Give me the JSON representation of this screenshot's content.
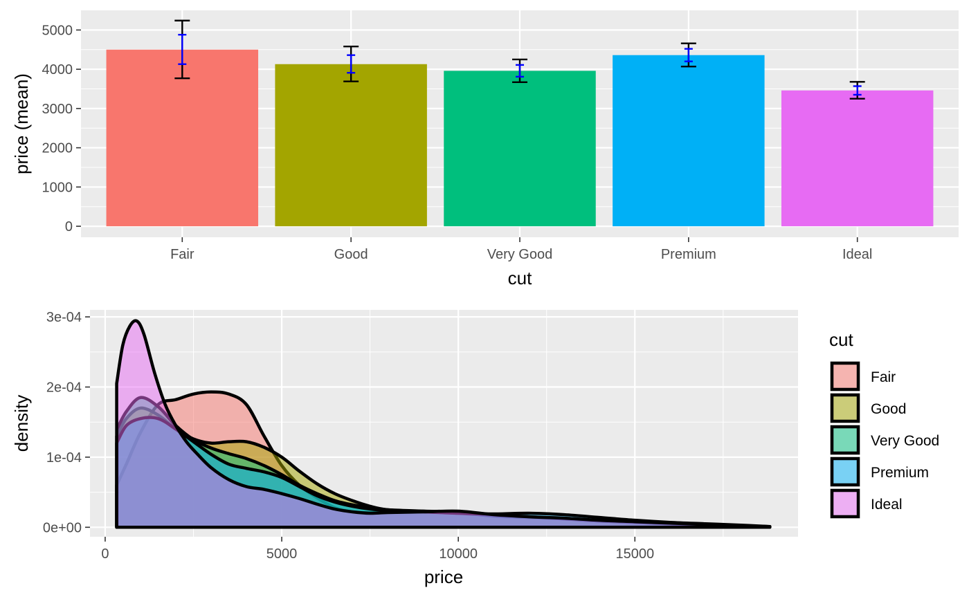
{
  "chart_data": [
    {
      "type": "bar",
      "xlabel": "cut",
      "ylabel": "price (mean)",
      "categories": [
        "Fair",
        "Good",
        "Very Good",
        "Premium",
        "Ideal"
      ],
      "values": [
        4500,
        4130,
        3960,
        4360,
        3460
      ],
      "error_outer": [
        [
          3770,
          5240
        ],
        [
          3690,
          4580
        ],
        [
          3670,
          4250
        ],
        [
          4070,
          4660
        ],
        [
          3250,
          3680
        ]
      ],
      "error_inner": [
        [
          4130,
          4880
        ],
        [
          3910,
          4360
        ],
        [
          3810,
          4110
        ],
        [
          4200,
          4520
        ],
        [
          3350,
          3570
        ]
      ],
      "ylim": [
        -280,
        5500
      ],
      "yticks": [
        0,
        1000,
        2000,
        3000,
        4000,
        5000
      ],
      "ytick_labels": [
        "0",
        "1000",
        "2000",
        "3000",
        "4000",
        "5000"
      ],
      "colors": [
        "#F8766D",
        "#A3A500",
        "#00BF7D",
        "#00B0F6",
        "#E76BF3"
      ],
      "grid": true,
      "legend": "none"
    },
    {
      "type": "area",
      "xlabel": "price",
      "ylabel": "density",
      "xlim": [
        -430,
        19620
      ],
      "ylim": [
        -1.35e-05,
        0.00031
      ],
      "xticks": [
        0,
        5000,
        10000,
        15000
      ],
      "xtick_labels": [
        "0",
        "5000",
        "10000",
        "15000"
      ],
      "yticks": [
        0,
        0.0001,
        0.0002,
        0.0003
      ],
      "ytick_labels": [
        "0e+00",
        "1e-04",
        "2e-04",
        "3e-04"
      ],
      "grid": true,
      "legend": "right",
      "legend_title": "cut",
      "series": [
        {
          "name": "Fair",
          "color": "#F8766D",
          "x": [
            326,
            600,
            1000,
            1500,
            2000,
            2500,
            3000,
            3500,
            4000,
            4500,
            5000,
            5500,
            6000,
            6500,
            7000,
            7500,
            8000,
            9000,
            10000,
            11000,
            12000,
            13000,
            14000,
            15000,
            16000,
            17000,
            18000,
            18574
          ],
          "y": [
            6e-05,
            9e-05,
            0.000135,
            0.000175,
            0.000182,
            0.00019,
            0.000193,
            0.00019,
            0.000175,
            0.00013,
            8.8e-05,
            6e-05,
            4.2e-05,
            2.8e-05,
            2.2e-05,
            2.1e-05,
            2.2e-05,
            2.3e-05,
            2.1e-05,
            1.6e-05,
            1.4e-05,
            1.2e-05,
            9e-06,
            7e-06,
            5e-06,
            4e-06,
            2e-06,
            1e-06
          ]
        },
        {
          "name": "Good",
          "color": "#A3A500",
          "x": [
            326,
            600,
            1000,
            1500,
            2000,
            2500,
            3000,
            3500,
            4000,
            4500,
            5000,
            5500,
            6000,
            6500,
            7000,
            7500,
            8000,
            9000,
            10000,
            11000,
            12000,
            13000,
            14000,
            15000,
            16000,
            17000,
            18000,
            18788
          ],
          "y": [
            0.00013,
            0.000155,
            0.00017,
            0.00016,
            0.00014,
            0.000126,
            0.00012,
            0.000122,
            0.000122,
            0.000114,
            0.0001,
            8e-05,
            6.2e-05,
            4.8e-05,
            3.8e-05,
            3e-05,
            2.5e-05,
            2.2e-05,
            2.1e-05,
            1.6e-05,
            1.4e-05,
            1.2e-05,
            9e-06,
            7e-06,
            5e-06,
            4e-06,
            2e-06,
            1e-06
          ]
        },
        {
          "name": "Very Good",
          "color": "#00BF7D",
          "x": [
            336,
            600,
            1000,
            1500,
            2000,
            2500,
            3000,
            3500,
            4000,
            4500,
            5000,
            5500,
            6000,
            6500,
            7000,
            7500,
            8000,
            9000,
            10000,
            11000,
            12000,
            13000,
            14000,
            15000,
            16000,
            17000,
            18000,
            18818
          ],
          "y": [
            0.00014,
            0.000165,
            0.000185,
            0.000172,
            0.000145,
            0.000125,
            0.000113,
            0.000105,
            9.8e-05,
            8.8e-05,
            7.5e-05,
            6e-05,
            4.8e-05,
            3.8e-05,
            3.2e-05,
            2.8e-05,
            2.5e-05,
            2.3e-05,
            2e-05,
            1.7e-05,
            1.5e-05,
            1.2e-05,
            9e-06,
            7e-06,
            5e-06,
            4e-06,
            2e-06,
            1e-06
          ]
        },
        {
          "name": "Premium",
          "color": "#00B0F6",
          "x": [
            326,
            600,
            1000,
            1500,
            2000,
            2500,
            3000,
            3500,
            4000,
            4500,
            5000,
            5500,
            6000,
            6500,
            7000,
            7500,
            8000,
            9000,
            10000,
            11000,
            12000,
            13000,
            14000,
            15000,
            16000,
            17000,
            18000,
            18823
          ],
          "y": [
            0.00012,
            0.000145,
            0.000155,
            0.000155,
            0.00014,
            0.000122,
            0.000104,
            9e-05,
            8.4e-05,
            7.9e-05,
            7.1e-05,
            5.8e-05,
            4.5e-05,
            3.6e-05,
            3e-05,
            2.6e-05,
            2.4e-05,
            2.2e-05,
            2e-05,
            1.9e-05,
            2e-05,
            1.8e-05,
            1.4e-05,
            1e-05,
            7e-06,
            5e-06,
            3e-06,
            1e-06
          ]
        },
        {
          "name": "Ideal",
          "color": "#E76BF3",
          "x": [
            326,
            500,
            700,
            900,
            1100,
            1400,
            1700,
            2000,
            2300,
            2600,
            3000,
            3500,
            4000,
            4500,
            5000,
            5500,
            6000,
            6500,
            7000,
            7500,
            8000,
            9000,
            10000,
            11000,
            12000,
            13000,
            14000,
            15000,
            16000,
            17000,
            18000,
            18806
          ],
          "y": [
            0.000205,
            0.00026,
            0.000287,
            0.000294,
            0.000275,
            0.00022,
            0.000175,
            0.000145,
            0.000122,
            0.000105,
            8.5e-05,
            6.8e-05,
            5.8e-05,
            5.4e-05,
            4.8e-05,
            4.1e-05,
            3.3e-05,
            2.6e-05,
            2.2e-05,
            2e-05,
            2.1e-05,
            2.2e-05,
            2.3e-05,
            1.8e-05,
            1.5e-05,
            1.3e-05,
            1e-05,
            8e-06,
            6e-06,
            4e-06,
            2e-06,
            1e-06
          ]
        }
      ]
    }
  ]
}
